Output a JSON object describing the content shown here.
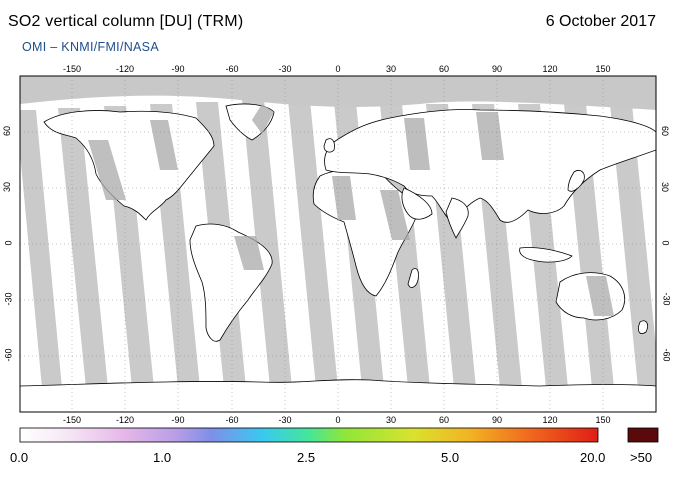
{
  "header": {
    "title": "SO2 vertical column [DU] (TRM)",
    "date": "6 October 2017",
    "credit": "OMI  –  KNMI/FMI/NASA"
  },
  "map": {
    "projection": "equirectangular",
    "lon_ticks": [
      "-150",
      "-120",
      "-90",
      "-60",
      "-30",
      "0",
      "30",
      "60",
      "90",
      "120",
      "150"
    ],
    "lat_ticks": [
      "60",
      "30",
      "0",
      "-30",
      "-60"
    ],
    "colors": {
      "no_data": "#c8c8c8",
      "land_no_data": "#a9a9a9",
      "ocean": "#ffffff",
      "coastline": "#000000",
      "grid": "#888888"
    }
  },
  "colorbar": {
    "labels": [
      "0.0",
      "1.0",
      "2.5",
      "5.0",
      "20.0"
    ],
    "overflow_label": ">50",
    "gradient_stops": [
      "#ffffff",
      "#f6e8f6",
      "#e6b7e9",
      "#b89ee6",
      "#7f8fe8",
      "#39c9f0",
      "#45e69a",
      "#8ee63a",
      "#d9e22e",
      "#f2b223",
      "#f06a1f",
      "#e01e16"
    ],
    "overflow_color": "#5a0a0a"
  }
}
